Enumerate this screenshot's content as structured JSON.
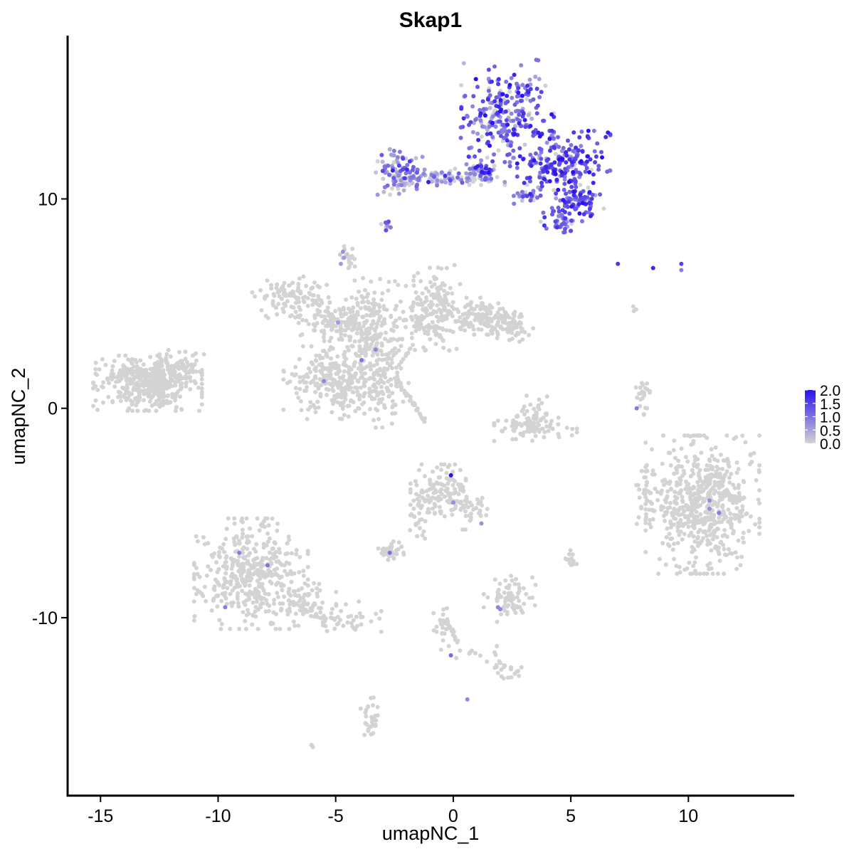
{
  "chart_data": {
    "type": "scatter",
    "title": "Skap1",
    "xlabel": "umapNC_1",
    "ylabel": "umapNC_2",
    "xlim": [
      -16.4,
      14.5
    ],
    "ylim": [
      -18.5,
      17.8
    ],
    "x_ticks": [
      -15,
      -10,
      -5,
      0,
      5,
      10
    ],
    "x_tick_labels": [
      "-15",
      "-10",
      "-5",
      "0",
      "5",
      "10"
    ],
    "y_ticks": [
      -10,
      0,
      10
    ],
    "y_tick_labels": [
      "-10",
      "0",
      "10"
    ],
    "grid": false,
    "color_scale": {
      "low_color": "#d3d3d3",
      "high_color": "#2a12f0",
      "min": 0.0,
      "max": 2.0,
      "ticks": [
        0.0,
        0.5,
        1.0,
        1.5,
        2.0
      ],
      "tick_labels": [
        "0.0",
        "0.5",
        "1.0",
        "1.5",
        "2.0"
      ],
      "legend_position": "right"
    },
    "clusters": [
      {
        "cx": 2.3,
        "cy": 14.0,
        "sx": 0.9,
        "sy": 1.2,
        "n": 260,
        "expr_mean": 1.15,
        "expr_frac": 0.92
      },
      {
        "cx": 4.7,
        "cy": 11.6,
        "sx": 0.9,
        "sy": 0.75,
        "n": 210,
        "expr_mean": 1.3,
        "expr_frac": 0.93
      },
      {
        "cx": 5.3,
        "cy": 9.9,
        "sx": 0.5,
        "sy": 0.35,
        "n": 80,
        "expr_mean": 1.25,
        "expr_frac": 0.9
      },
      {
        "cx": 4.6,
        "cy": 9.0,
        "sx": 0.4,
        "sy": 0.3,
        "n": 45,
        "expr_mean": 1.1,
        "expr_frac": 0.9
      },
      {
        "cx": -2.3,
        "cy": 11.3,
        "sx": 0.45,
        "sy": 0.5,
        "n": 95,
        "expr_mean": 0.9,
        "expr_frac": 0.8
      },
      {
        "cx": -0.6,
        "cy": 11.0,
        "sx": 0.8,
        "sy": 0.2,
        "n": 70,
        "expr_mean": 0.85,
        "expr_frac": 0.75
      },
      {
        "cx": 1.2,
        "cy": 11.2,
        "sx": 0.45,
        "sy": 0.35,
        "n": 55,
        "expr_mean": 0.85,
        "expr_frac": 0.75
      },
      {
        "cx": 3.2,
        "cy": 10.1,
        "sx": 0.3,
        "sy": 0.15,
        "n": 22,
        "expr_mean": 1.0,
        "expr_frac": 0.85
      },
      {
        "cx": -2.8,
        "cy": 8.7,
        "sx": 0.12,
        "sy": 0.12,
        "n": 12,
        "expr_mean": 0.7,
        "expr_frac": 0.7
      },
      {
        "cx": -4.6,
        "cy": 7.3,
        "sx": 0.12,
        "sy": 0.2,
        "n": 10,
        "expr_mean": 0.4,
        "expr_frac": 0.5
      },
      {
        "cx": -13.0,
        "cy": 1.2,
        "sx": 1.05,
        "sy": 0.6,
        "n": 430,
        "expr_mean": 0,
        "expr_frac": 0
      },
      {
        "cx": -11.7,
        "cy": 1.9,
        "sx": 0.5,
        "sy": 0.4,
        "n": 70,
        "expr_mean": 0,
        "expr_frac": 0
      },
      {
        "cx": -6.9,
        "cy": 5.3,
        "sx": 0.75,
        "sy": 0.45,
        "n": 110,
        "expr_mean": 0,
        "expr_frac": 0
      },
      {
        "cx": -5.0,
        "cy": 4.2,
        "sx": 0.8,
        "sy": 0.45,
        "n": 110,
        "expr_mean": 0,
        "expr_frac": 0
      },
      {
        "cx": -4.8,
        "cy": 1.2,
        "sx": 1.1,
        "sy": 0.8,
        "n": 300,
        "expr_mean": 0,
        "expr_frac": 0
      },
      {
        "cx": -3.6,
        "cy": 3.8,
        "sx": 0.6,
        "sy": 1.1,
        "n": 200,
        "expr_mean": 0,
        "expr_frac": 0
      },
      {
        "cx": -3.0,
        "cy": 1.5,
        "sx": 0.5,
        "sy": 1.1,
        "n": 80,
        "expr_mean": 0,
        "expr_frac": 0
      },
      {
        "cx": -1.4,
        "cy": 4.3,
        "sx": 0.7,
        "sy": 0.7,
        "n": 100,
        "expr_mean": 0,
        "expr_frac": 0
      },
      {
        "cx": -0.7,
        "cy": 5.3,
        "sx": 0.45,
        "sy": 0.7,
        "n": 80,
        "expr_mean": 0,
        "expr_frac": 0
      },
      {
        "cx": 1.1,
        "cy": 4.4,
        "sx": 0.7,
        "sy": 0.4,
        "n": 120,
        "expr_mean": 0,
        "expr_frac": 0
      },
      {
        "cx": 2.3,
        "cy": 3.9,
        "sx": 0.5,
        "sy": 0.35,
        "n": 70,
        "expr_mean": 0,
        "expr_frac": 0
      },
      {
        "cx": -4.4,
        "cy": 7.0,
        "sx": 0.12,
        "sy": 0.35,
        "n": 12,
        "expr_mean": 0,
        "expr_frac": 0
      },
      {
        "cx": 3.3,
        "cy": -0.5,
        "sx": 0.35,
        "sy": 0.5,
        "n": 55,
        "expr_mean": 0,
        "expr_frac": 0
      },
      {
        "cx": 3.5,
        "cy": -0.9,
        "sx": 0.8,
        "sy": 0.3,
        "n": 60,
        "expr_mean": 0,
        "expr_frac": 0
      },
      {
        "cx": 8.1,
        "cy": 0.5,
        "sx": 0.15,
        "sy": 0.5,
        "n": 22,
        "expr_mean": 0,
        "expr_frac": 0
      },
      {
        "cx": 10.6,
        "cy": -4.6,
        "sx": 1.1,
        "sy": 1.5,
        "n": 620,
        "expr_mean": 0,
        "expr_frac": 0
      },
      {
        "cx": 8.2,
        "cy": -4.2,
        "sx": 0.25,
        "sy": 0.6,
        "n": 30,
        "expr_mean": 0,
        "expr_frac": 0
      },
      {
        "cx": -0.5,
        "cy": -4.0,
        "sx": 0.6,
        "sy": 0.6,
        "n": 130,
        "expr_mean": 0,
        "expr_frac": 0
      },
      {
        "cx": 0.8,
        "cy": -4.8,
        "sx": 0.4,
        "sy": 0.45,
        "n": 35,
        "expr_mean": 0,
        "expr_frac": 0
      },
      {
        "cx": -1.5,
        "cy": -5.5,
        "sx": 0.25,
        "sy": 0.6,
        "n": 22,
        "expr_mean": 0,
        "expr_frac": 0
      },
      {
        "cx": -2.6,
        "cy": -6.8,
        "sx": 0.35,
        "sy": 0.2,
        "n": 40,
        "expr_mean": 0,
        "expr_frac": 0
      },
      {
        "cx": 5.0,
        "cy": -7.2,
        "sx": 0.12,
        "sy": 0.2,
        "n": 14,
        "expr_mean": 0,
        "expr_frac": 0
      },
      {
        "cx": -8.6,
        "cy": -7.9,
        "sx": 1.1,
        "sy": 1.2,
        "n": 420,
        "expr_mean": 0,
        "expr_frac": 0
      },
      {
        "cx": -6.3,
        "cy": -9.3,
        "sx": 0.6,
        "sy": 0.5,
        "n": 70,
        "expr_mean": 0,
        "expr_frac": 0
      },
      {
        "cx": -4.6,
        "cy": -10.0,
        "sx": 0.7,
        "sy": 0.35,
        "n": 50,
        "expr_mean": 0,
        "expr_frac": 0
      },
      {
        "cx": 2.4,
        "cy": -9.1,
        "sx": 0.5,
        "sy": 0.5,
        "n": 70,
        "expr_mean": 0,
        "expr_frac": 0
      },
      {
        "cx": -0.4,
        "cy": -10.5,
        "sx": 0.2,
        "sy": 0.6,
        "n": 25,
        "expr_mean": 0,
        "expr_frac": 0
      },
      {
        "cx": 2.3,
        "cy": -12.5,
        "sx": 0.35,
        "sy": 0.2,
        "n": 22,
        "expr_mean": 0,
        "expr_frac": 0
      },
      {
        "cx": 1.0,
        "cy": -11.8,
        "sx": 0.7,
        "sy": 0.2,
        "n": 12,
        "expr_mean": 0,
        "expr_frac": 0
      },
      {
        "cx": -3.5,
        "cy": -14.7,
        "sx": 0.2,
        "sy": 0.6,
        "n": 30,
        "expr_mean": 0,
        "expr_frac": 0
      },
      {
        "cx": -6.0,
        "cy": -16.1,
        "sx": 0.06,
        "sy": 0.06,
        "n": 3,
        "expr_mean": 0,
        "expr_frac": 0
      },
      {
        "cx": 7.8,
        "cy": 4.7,
        "sx": 0.08,
        "sy": 0.12,
        "n": 3,
        "expr_mean": 0,
        "expr_frac": 0
      }
    ],
    "streaks": [
      {
        "x0": -2.5,
        "y0": 1.5,
        "x1": -1.2,
        "y1": -0.6,
        "n": 30
      },
      {
        "x0": -1.0,
        "y0": 4.0,
        "x1": -0.4,
        "y1": 3.2,
        "n": 12
      },
      {
        "x0": -2.4,
        "y0": 2.0,
        "x1": -1.7,
        "y1": 3.0,
        "n": 10
      },
      {
        "x0": -0.3,
        "y0": -10.2,
        "x1": 0.2,
        "y1": -11.2,
        "n": 14
      }
    ],
    "highlighted_points": [
      {
        "x": 7.0,
        "y": 6.9,
        "v": 1.6
      },
      {
        "x": 8.5,
        "y": 6.7,
        "v": 1.8
      },
      {
        "x": 9.7,
        "y": 6.9,
        "v": 1.5
      },
      {
        "x": 9.7,
        "y": 6.6,
        "v": 0.9
      },
      {
        "x": -4.9,
        "y": 4.1,
        "v": 0.6
      },
      {
        "x": -3.9,
        "y": 2.3,
        "v": 1.0
      },
      {
        "x": -3.3,
        "y": 2.8,
        "v": 0.8
      },
      {
        "x": -5.5,
        "y": 1.3,
        "v": 0.8
      },
      {
        "x": 7.8,
        "y": 0.0,
        "v": 0.9
      },
      {
        "x": -0.1,
        "y": -3.2,
        "v": 2.0
      },
      {
        "x": 0.0,
        "y": -4.5,
        "v": 0.7
      },
      {
        "x": 1.2,
        "y": -5.5,
        "v": 0.7
      },
      {
        "x": 10.9,
        "y": -4.4,
        "v": 0.7
      },
      {
        "x": 11.3,
        "y": -5.0,
        "v": 0.9
      },
      {
        "x": 10.9,
        "y": -4.8,
        "v": 0.7
      },
      {
        "x": -2.7,
        "y": -6.9,
        "v": 1.0
      },
      {
        "x": -9.1,
        "y": -6.9,
        "v": 0.9
      },
      {
        "x": -7.9,
        "y": -7.5,
        "v": 1.0
      },
      {
        "x": -9.7,
        "y": -9.5,
        "v": 0.9
      },
      {
        "x": 1.9,
        "y": -9.5,
        "v": 0.8
      },
      {
        "x": 2.0,
        "y": -9.6,
        "v": 0.8
      },
      {
        "x": -0.1,
        "y": -11.8,
        "v": 1.1
      },
      {
        "x": 0.6,
        "y": -13.9,
        "v": 0.8
      }
    ]
  }
}
